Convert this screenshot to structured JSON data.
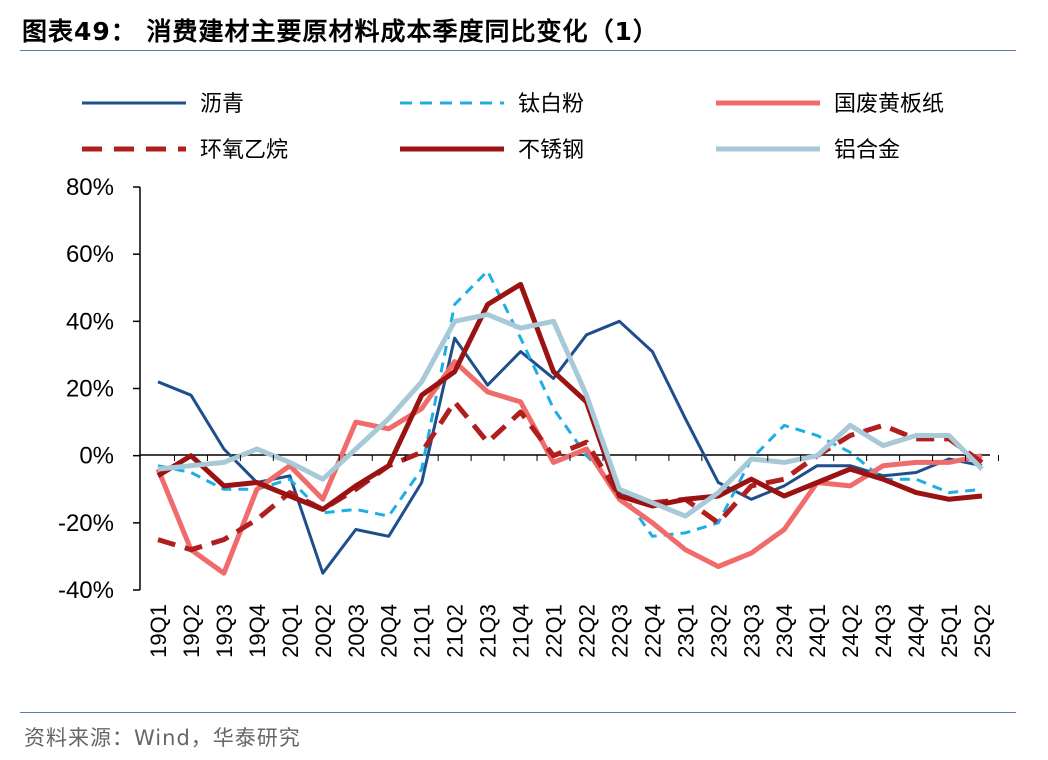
{
  "title": "图表49：  消费建材主要原材料成本季度同比变化（1）",
  "source": "资料来源：Wind，华泰研究",
  "chart_data": {
    "type": "line",
    "categories": [
      "19Q1",
      "19Q2",
      "19Q3",
      "19Q4",
      "20Q1",
      "20Q2",
      "20Q3",
      "20Q4",
      "21Q1",
      "21Q2",
      "21Q3",
      "21Q4",
      "22Q1",
      "22Q2",
      "22Q3",
      "22Q4",
      "23Q1",
      "23Q2",
      "23Q3",
      "23Q4",
      "24Q1",
      "24Q2",
      "24Q3",
      "24Q4",
      "25Q1",
      "25Q2"
    ],
    "y_ticks": [
      "80%",
      "60%",
      "40%",
      "20%",
      "0%",
      "-20%",
      "-40%"
    ],
    "ylim": [
      -40,
      80
    ],
    "unit": "%",
    "legend_position": "top",
    "series": [
      {
        "name": "沥青",
        "color": "#1f4e8c",
        "dash": "solid",
        "width": 3,
        "values": [
          22,
          18,
          2,
          -8,
          -6,
          -35,
          -22,
          -24,
          -8,
          35,
          21,
          31,
          23,
          36,
          40,
          31,
          11,
          -8,
          -13,
          -9,
          -3,
          -3,
          -6,
          -5,
          -1,
          -3
        ]
      },
      {
        "name": "钛白粉",
        "color": "#1eaee6",
        "dash": "dashed",
        "width": 3,
        "values": [
          -3,
          -5,
          -10,
          -10,
          -7,
          -17,
          -16,
          -18,
          -4,
          45,
          55,
          35,
          14,
          0,
          -10,
          -24,
          -23,
          -20,
          -1,
          9,
          6,
          1,
          -7,
          -7,
          -11,
          -10
        ]
      },
      {
        "name": "国废黄板纸",
        "color": "#f06b6b",
        "dash": "solid",
        "width": 5,
        "values": [
          -4,
          -28,
          -35,
          -10,
          -3,
          -13,
          10,
          8,
          14,
          28,
          19,
          16,
          -2,
          2,
          -13,
          -20,
          -28,
          -33,
          -29,
          -22,
          -8,
          -9,
          -3,
          -2,
          -2,
          0
        ]
      },
      {
        "name": "环氧乙烷",
        "color": "#b01e1e",
        "dash": "dashed",
        "width": 5,
        "values": [
          -25,
          -28,
          -25,
          -19,
          -11,
          -16,
          -10,
          -3,
          1,
          16,
          4,
          13,
          0,
          4,
          -12,
          -14,
          -13,
          -20,
          -9,
          -7,
          0,
          6,
          9,
          5,
          5,
          -2
        ]
      },
      {
        "name": "不锈钢",
        "color": "#9b1212",
        "dash": "solid",
        "width": 5,
        "values": [
          -6,
          0,
          -9,
          -8,
          -12,
          -16,
          -9,
          -3,
          18,
          25,
          45,
          51,
          25,
          16,
          -12,
          -15,
          -13,
          -12,
          -7,
          -12,
          -8,
          -4,
          -7,
          -11,
          -13,
          -12
        ]
      },
      {
        "name": "铝合金",
        "color": "#a7c9d8",
        "dash": "solid",
        "width": 5,
        "values": [
          -4,
          -3,
          -2,
          2,
          -2,
          -7,
          2,
          11,
          22,
          40,
          42,
          38,
          40,
          18,
          -10,
          -14,
          -18,
          -11,
          -1,
          -2,
          0,
          9,
          3,
          6,
          6,
          -4
        ]
      }
    ]
  }
}
